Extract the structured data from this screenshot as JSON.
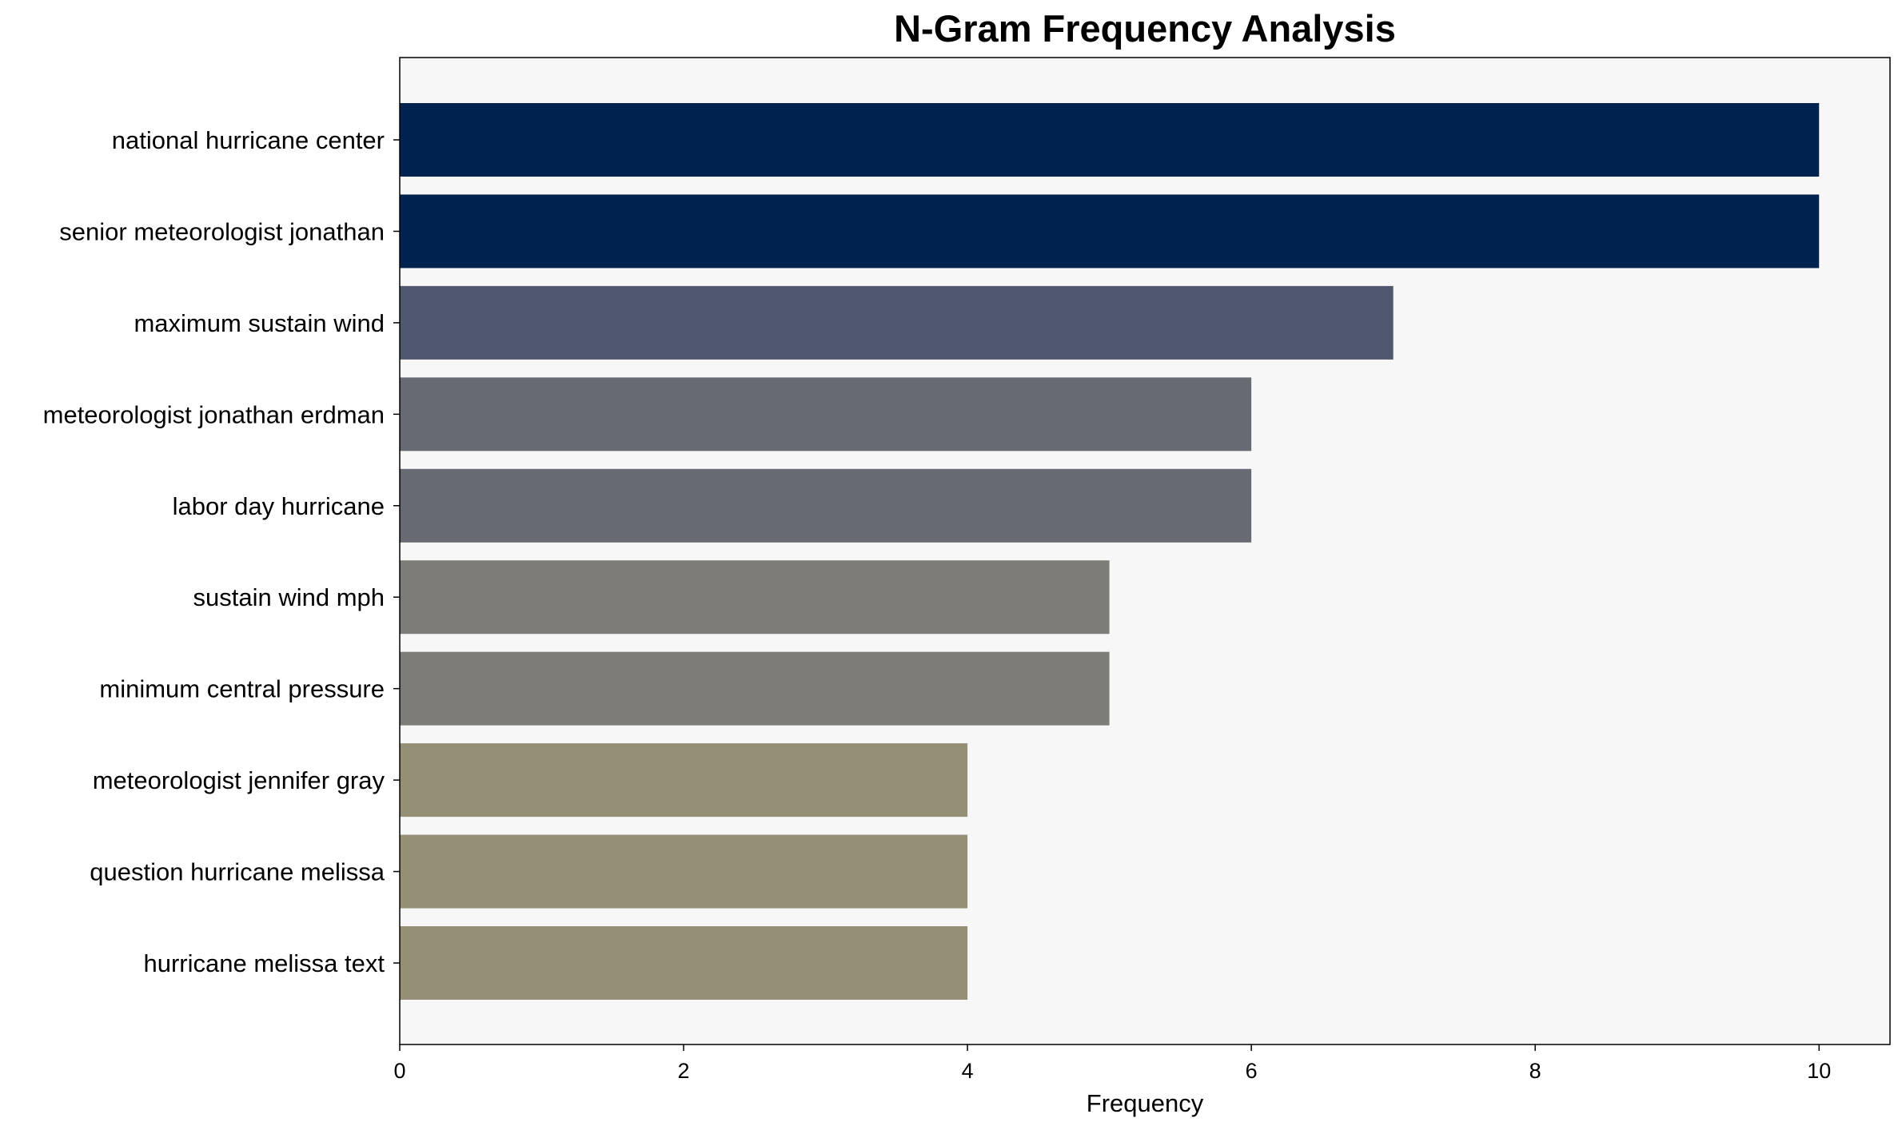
{
  "chart_data": {
    "type": "bar",
    "orientation": "horizontal",
    "title": "N-Gram Frequency Analysis",
    "xlabel": "Frequency",
    "ylabel": "",
    "xlim": [
      0,
      10.5
    ],
    "xticks": [
      0,
      2,
      4,
      6,
      8,
      10
    ],
    "grid": false,
    "legend": "none",
    "categories": [
      "national hurricane center",
      "senior meteorologist jonathan",
      "maximum sustain wind",
      "meteorologist jonathan erdman",
      "labor day hurricane",
      "sustain wind mph",
      "minimum central pressure",
      "meteorologist jennifer gray",
      "question hurricane melissa",
      "hurricane melissa text"
    ],
    "values": [
      10,
      10,
      7,
      6,
      6,
      5,
      5,
      4,
      4,
      4
    ],
    "colors": [
      "#00224e",
      "#00224e",
      "#4f586d",
      "#676a72",
      "#676a72",
      "#7e7c77",
      "#7e7c77",
      "#958f76",
      "#958f76",
      "#958f76"
    ],
    "plot_background": "#f7f7f7"
  }
}
